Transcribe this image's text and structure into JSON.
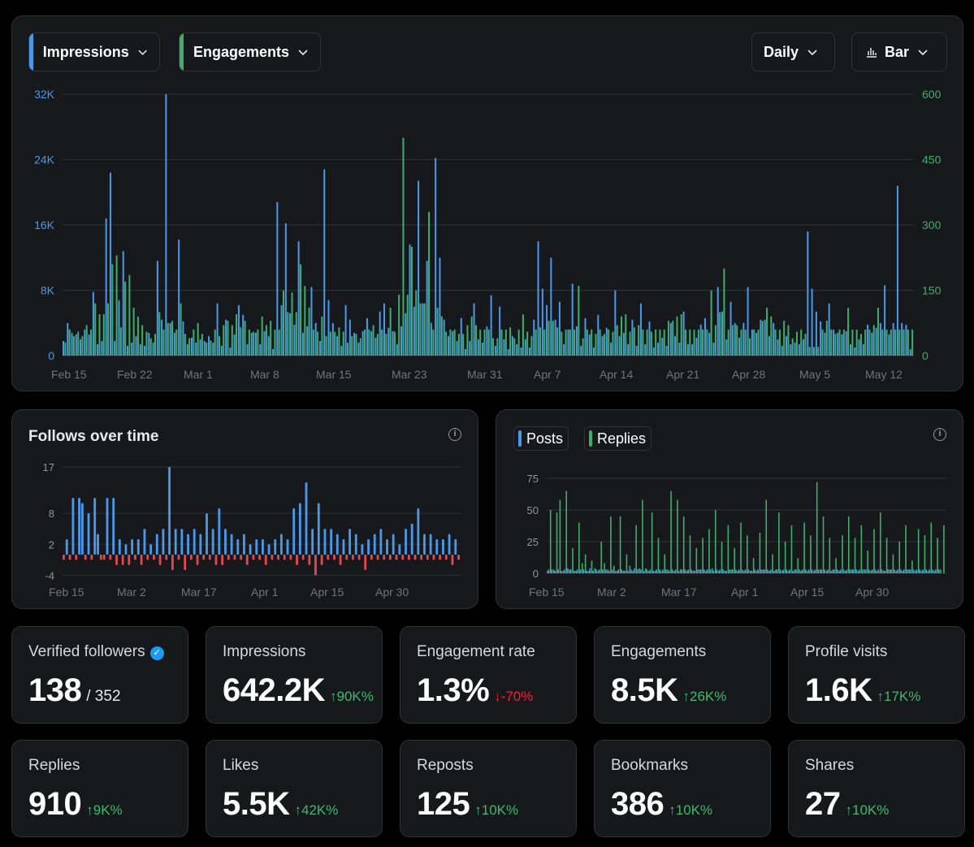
{
  "controls": {
    "metric1": "Impressions",
    "metric2": "Engagements",
    "interval": "Daily",
    "chart_type": "Bar"
  },
  "colors": {
    "impressions": "#4a99e9",
    "engagements": "#3fae6a",
    "negative": "#e5484d",
    "background": "#000000",
    "card": "#16181c"
  },
  "main_chart": {
    "left_ticks": [
      "0",
      "8K",
      "16K",
      "24K",
      "32K"
    ],
    "right_ticks": [
      "0",
      "150",
      "300",
      "450",
      "600"
    ],
    "x_labels": [
      "Feb 15",
      "Feb 22",
      "Mar 1",
      "Mar 8",
      "Mar 15",
      "Mar 23",
      "Mar 31",
      "Apr 7",
      "Apr 14",
      "Apr 21",
      "Apr 28",
      "May 5",
      "May 12"
    ]
  },
  "follows_chart": {
    "title": "Follows over time",
    "y_ticks": [
      "-4",
      "2",
      "8",
      "17"
    ],
    "x_labels": [
      "Feb 15",
      "Mar 2",
      "Mar 17",
      "Apr 1",
      "Apr 15",
      "Apr 30"
    ]
  },
  "posts_chart": {
    "legend": [
      "Posts",
      "Replies"
    ],
    "y_ticks": [
      "0",
      "25",
      "50",
      "75"
    ],
    "x_labels": [
      "Feb 15",
      "Mar 2",
      "Mar 17",
      "Apr 1",
      "Apr 15",
      "Apr 30"
    ]
  },
  "stats": [
    {
      "title": "Verified followers",
      "value": "138",
      "sub": "/ 352",
      "delta": "",
      "verified": true
    },
    {
      "title": "Impressions",
      "value": "642.2K",
      "delta": "↑90K%",
      "dir": "up"
    },
    {
      "title": "Engagement rate",
      "value": "1.3%",
      "delta": "↓-70%",
      "dir": "down"
    },
    {
      "title": "Engagements",
      "value": "8.5K",
      "delta": "↑26K%",
      "dir": "up"
    },
    {
      "title": "Profile visits",
      "value": "1.6K",
      "delta": "↑17K%",
      "dir": "up"
    },
    {
      "title": "Replies",
      "value": "910",
      "delta": "↑9K%",
      "dir": "up"
    },
    {
      "title": "Likes",
      "value": "5.5K",
      "delta": "↑42K%",
      "dir": "up"
    },
    {
      "title": "Reposts",
      "value": "125",
      "delta": "↑10K%",
      "dir": "up"
    },
    {
      "title": "Bookmarks",
      "value": "386",
      "delta": "↑10K%",
      "dir": "up"
    },
    {
      "title": "Shares",
      "value": "27",
      "delta": "↑10K%",
      "dir": "up"
    }
  ],
  "chart_data": [
    {
      "type": "bar",
      "series": [
        {
          "name": "Impressions",
          "axis": "left",
          "values": [
            1800,
            4000,
            2800,
            2600,
            2000,
            3200,
            2600,
            7800,
            1400,
            1800,
            16800,
            22400,
            1800,
            6800,
            12800,
            1200,
            1600,
            2400,
            1400,
            1200,
            2800,
            1600,
            11600,
            4400,
            32000,
            4000,
            2800,
            14200,
            4200,
            1400,
            2200,
            1600,
            2000,
            1800,
            2400,
            1600,
            6400,
            1200,
            4400,
            1000,
            2600,
            6200,
            5000,
            1400,
            2800,
            2800,
            1400,
            3000,
            2400,
            800,
            18800,
            6200,
            16200,
            5200,
            3800,
            14000,
            2800,
            3600,
            8400,
            4000,
            1800,
            22800,
            6800,
            4000,
            2400,
            1200,
            6200,
            4400,
            2800,
            1600,
            3000,
            4600,
            3000,
            2200,
            5400,
            6400,
            3400,
            3000,
            1400,
            3600,
            5200,
            13600,
            6000,
            21400,
            6400,
            11600,
            4000,
            24200,
            12000,
            4400,
            2400,
            3000,
            1800,
            4600,
            800,
            1800,
            6400,
            2000,
            1600,
            3600,
            7400,
            1200,
            6000,
            2000,
            800,
            2400,
            1400,
            1000,
            2000,
            1000,
            4400,
            14000,
            8200,
            6200,
            12000,
            4400,
            6600,
            1400,
            3200,
            8800,
            3600,
            1200,
            4600,
            2600,
            1000,
            5000,
            2400,
            3400,
            1600,
            8000,
            2400,
            2800,
            1400,
            4400,
            1200,
            6400,
            1400,
            4200,
            1000,
            1600,
            2200,
            1200,
            4000,
            2400,
            1600,
            5400,
            1400,
            1400,
            2200,
            3800,
            4600,
            2800,
            1600,
            8400,
            5400,
            2000,
            6600,
            4000,
            2200,
            4000,
            8400,
            3200,
            2800,
            4400,
            4400,
            2400,
            4000,
            2000,
            1200,
            2400,
            1400,
            1600,
            1400,
            2000,
            15200,
            8200,
            5400,
            4200,
            2800,
            6400,
            3200,
            2800,
            2600,
            3000,
            1400,
            1000,
            2000,
            1400,
            3800,
            2800,
            3400,
            4000,
            8600,
            2600,
            4000,
            20800,
            4000,
            3800,
            800
          ],
          "color": "#4a99e9"
        },
        {
          "name": "Engagements",
          "axis": "right",
          "values": [
            30,
            60,
            45,
            55,
            45,
            70,
            60,
            120,
            95,
            95,
            120,
            210,
            230,
            65,
            170,
            185,
            110,
            90,
            70,
            55,
            40,
            50,
            100,
            60,
            75,
            80,
            60,
            120,
            50,
            40,
            60,
            75,
            50,
            30,
            35,
            60,
            45,
            70,
            80,
            70,
            95,
            65,
            80,
            60,
            55,
            60,
            90,
            70,
            80,
            60,
            60,
            150,
            100,
            145,
            100,
            210,
            160,
            110,
            60,
            55,
            90,
            45,
            55,
            55,
            65,
            55,
            30,
            45,
            50,
            40,
            60,
            60,
            70,
            50,
            60,
            50,
            110,
            55,
            140,
            500,
            140,
            250,
            150,
            120,
            120,
            330,
            60,
            110,
            90,
            55,
            60,
            60,
            50,
            50,
            70,
            90,
            70,
            60,
            60,
            60,
            40,
            40,
            60,
            60,
            65,
            40,
            60,
            95,
            55,
            45,
            60,
            65,
            60,
            80,
            80,
            65,
            55,
            60,
            60,
            60,
            160,
            40,
            60,
            60,
            50,
            60,
            50,
            60,
            55,
            70,
            90,
            95,
            55,
            65,
            70,
            60,
            60,
            55,
            60,
            60,
            60,
            80,
            80,
            90,
            95,
            60,
            60,
            60,
            60,
            60,
            60,
            150,
            70,
            100,
            200,
            60,
            70,
            70,
            60,
            60,
            40,
            60,
            60,
            80,
            110,
            90,
            60,
            60,
            80,
            70,
            40,
            55,
            60,
            50,
            20,
            20,
            20,
            60,
            80,
            60,
            50,
            60,
            60,
            110,
            60,
            60,
            50,
            60,
            60,
            70,
            110,
            60,
            60,
            60,
            60,
            60,
            60,
            60,
            60
          ],
          "color": "#3fae6a"
        }
      ],
      "left_axis": {
        "ylim": [
          0,
          32000
        ],
        "ticks": [
          "0",
          "8K",
          "16K",
          "24K",
          "32K"
        ]
      },
      "right_axis": {
        "ylim": [
          0,
          600
        ],
        "ticks": [
          "0",
          "150",
          "300",
          "450",
          "600"
        ]
      }
    },
    {
      "type": "bar",
      "title": "Follows over time",
      "ylim": [
        -4,
        17
      ],
      "values": [
        -1,
        3,
        -1,
        11,
        -1,
        11,
        10,
        -1,
        8,
        -1,
        11,
        4,
        -1,
        -1,
        11,
        -1,
        11,
        -2,
        3,
        -2,
        2,
        -2,
        3,
        -1,
        3,
        -2,
        5,
        -1,
        2,
        -1,
        4,
        -2,
        5,
        -1,
        17,
        -3,
        5,
        -1,
        5,
        -3,
        4,
        -1,
        5,
        -2,
        4,
        -1,
        8,
        -1,
        5,
        -2,
        9,
        -2,
        5,
        -1,
        4,
        -1,
        3,
        -1,
        4,
        -2,
        2,
        -1,
        3,
        -1,
        3,
        -2,
        2,
        -1,
        3,
        -1,
        4,
        -1,
        3,
        -1,
        9,
        -2,
        10,
        -1,
        14,
        -2,
        5,
        -4,
        10,
        -2,
        5,
        -1,
        5,
        -1,
        4,
        -2,
        3,
        -1,
        5,
        -1,
        4,
        -1,
        2,
        -3,
        3,
        -1,
        4,
        -1,
        5,
        -1,
        3,
        -1,
        4,
        -1,
        2,
        -1,
        5,
        -1,
        6,
        -1,
        9,
        -1,
        4,
        -1,
        4,
        -1,
        3,
        -1,
        3,
        -1,
        4,
        -2,
        3,
        -1
      ],
      "colors": {
        "positive": "#4a99e9",
        "negative": "#e5484d"
      }
    },
    {
      "type": "bar",
      "series": [
        {
          "name": "Replies",
          "values": [
            2,
            50,
            3,
            48,
            58,
            2,
            65,
            3,
            20,
            2,
            40,
            8,
            15,
            2,
            10,
            4,
            2,
            25,
            8,
            3,
            45,
            6,
            2,
            45,
            2,
            15,
            6,
            2,
            38,
            4,
            58,
            4,
            2,
            48,
            2,
            28,
            2,
            15,
            3,
            65,
            2,
            58,
            3,
            45,
            2,
            30,
            2,
            20,
            3,
            28,
            2,
            35,
            4,
            50,
            2,
            25,
            2,
            38,
            3,
            20,
            2,
            40,
            2,
            30,
            2,
            12,
            2,
            32,
            3,
            58,
            2,
            15,
            3,
            48,
            2,
            25,
            2,
            38,
            3,
            12,
            2,
            40,
            2,
            30,
            2,
            72,
            3,
            45,
            2,
            28,
            3,
            12,
            2,
            30,
            2,
            45,
            3,
            28,
            2,
            38,
            3,
            18,
            2,
            35,
            2,
            48,
            2,
            28,
            3,
            15,
            2,
            25,
            2,
            38,
            3,
            10,
            2,
            35,
            2,
            30,
            2,
            40,
            2,
            28,
            3,
            38
          ],
          "color": "#3fae6a"
        },
        {
          "name": "Posts",
          "values": [
            3,
            3,
            2,
            3,
            2,
            3,
            4,
            3,
            2,
            3,
            3,
            3,
            2,
            4,
            2,
            3,
            3,
            3,
            3,
            2,
            3,
            2,
            3,
            3,
            2,
            2,
            3,
            4,
            3,
            3,
            2,
            3,
            3,
            2,
            3,
            3,
            3,
            3,
            2,
            3,
            3,
            2,
            3,
            3,
            3,
            3,
            2,
            3,
            3,
            3,
            3,
            3,
            2,
            3,
            3,
            3,
            2,
            3,
            3,
            3,
            3,
            3,
            3,
            3,
            2,
            3,
            3,
            3,
            3,
            3,
            3,
            2,
            3,
            3,
            3,
            3,
            3,
            2,
            3,
            3,
            3,
            3,
            3,
            3,
            3,
            3,
            3,
            3,
            3,
            2,
            3,
            3,
            3,
            3,
            3,
            3,
            3,
            3,
            3,
            3,
            3,
            3,
            3,
            3,
            3,
            3,
            2,
            3,
            3,
            3,
            3,
            3,
            3,
            3,
            3,
            3,
            3,
            3,
            3,
            3,
            3,
            3,
            3,
            3
          ],
          "color": "#4a99e9"
        }
      ],
      "ylim": [
        0,
        75
      ]
    }
  ]
}
